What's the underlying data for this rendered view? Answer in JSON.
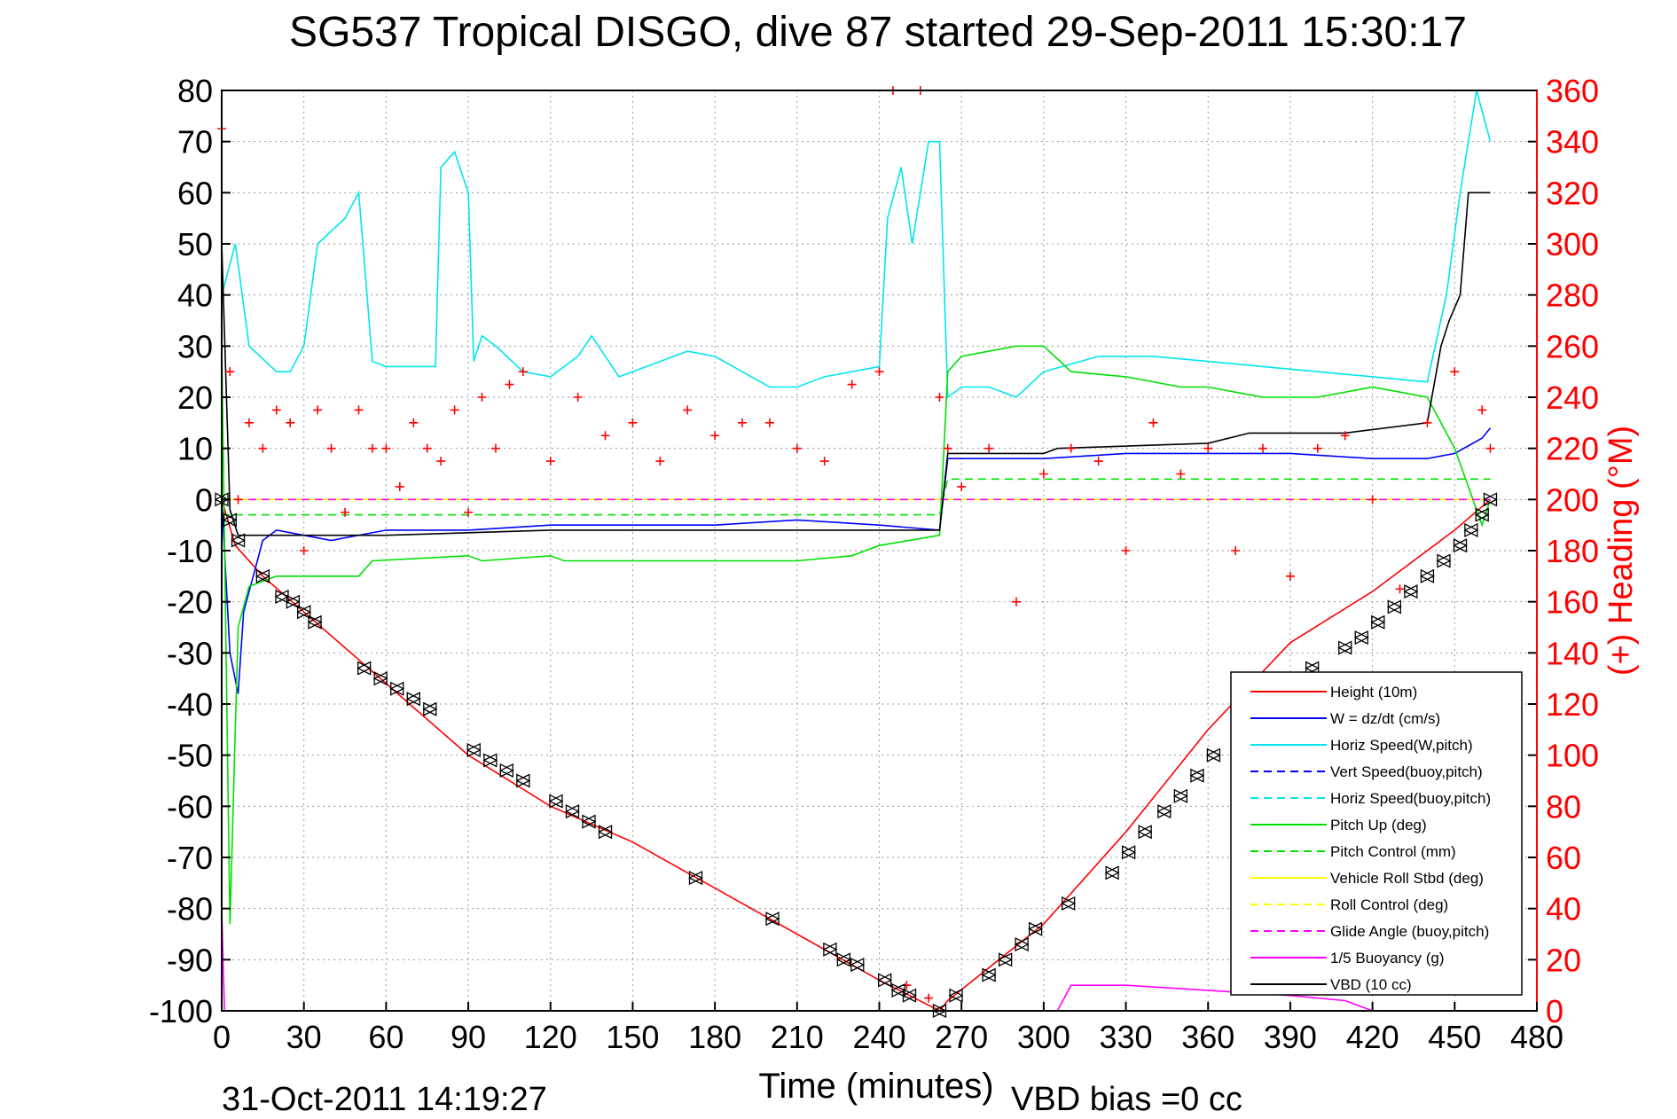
{
  "chart_data": {
    "type": "line",
    "title": "SG537 Tropical DISGO, dive 87 started 29-Sep-2011 15:30:17",
    "xlabel": "Time (minutes)",
    "ylabel": "",
    "ylabel_right": "(+) Heading (°M)",
    "xlim": [
      0,
      480
    ],
    "ylim": [
      -100,
      80
    ],
    "ylim_right": [
      0,
      360
    ],
    "x_ticks": [
      0,
      30,
      60,
      90,
      120,
      150,
      180,
      210,
      240,
      270,
      300,
      330,
      360,
      390,
      420,
      450,
      480
    ],
    "y_ticks": [
      -100,
      -90,
      -80,
      -70,
      -60,
      -50,
      -40,
      -30,
      -20,
      -10,
      0,
      10,
      20,
      30,
      40,
      50,
      60,
      70,
      80
    ],
    "y_ticks_right": [
      0,
      20,
      40,
      60,
      80,
      100,
      120,
      140,
      160,
      180,
      200,
      220,
      240,
      260,
      280,
      300,
      320,
      340,
      360
    ],
    "grid": true,
    "legend_position": "bottom-right",
    "footer_left": "31-Oct-2011 14:19:27",
    "footer_right": "VBD bias =0 cc",
    "series": [
      {
        "name": "Height (10m)",
        "color": "#ff0000",
        "style": "solid",
        "x": [
          0,
          5,
          15,
          30,
          60,
          90,
          120,
          150,
          180,
          210,
          240,
          262,
          265,
          300,
          330,
          360,
          390,
          420,
          450,
          463
        ],
        "y": [
          0,
          -9,
          -15,
          -22,
          -36,
          -50,
          -60,
          -67,
          -76,
          -85,
          -94,
          -100,
          -98,
          -83,
          -65,
          -45,
          -28,
          -18,
          -6,
          0
        ]
      },
      {
        "name": "W = dz/dt (cm/s)",
        "color": "#0000ff",
        "style": "solid",
        "x": [
          0,
          3,
          6,
          8,
          12,
          15,
          20,
          30,
          40,
          60,
          90,
          120,
          150,
          180,
          210,
          240,
          262,
          265,
          270,
          300,
          330,
          360,
          390,
          420,
          440,
          450,
          460,
          463
        ],
        "y": [
          0,
          -30,
          -38,
          -22,
          -14,
          -8,
          -6,
          -7,
          -8,
          -6,
          -6,
          -5,
          -5,
          -5,
          -4,
          -5,
          -6,
          8,
          8,
          8,
          9,
          9,
          9,
          8,
          8,
          9,
          12,
          14
        ]
      },
      {
        "name": "Horiz Speed(W,pitch)",
        "color": "#00e5ee",
        "style": "solid",
        "x": [
          0,
          5,
          10,
          20,
          25,
          30,
          35,
          45,
          50,
          55,
          60,
          70,
          78,
          80,
          85,
          90,
          92,
          95,
          100,
          110,
          120,
          130,
          135,
          145,
          150,
          160,
          170,
          180,
          190,
          200,
          210,
          220,
          230,
          240,
          243,
          248,
          252,
          258,
          262,
          265,
          270,
          280,
          290,
          300,
          320,
          340,
          360,
          380,
          400,
          420,
          440,
          447,
          452,
          458,
          463
        ],
        "y": [
          40,
          50,
          30,
          25,
          25,
          30,
          50,
          55,
          60,
          27,
          26,
          26,
          26,
          65,
          68,
          60,
          27,
          32,
          30,
          25,
          24,
          28,
          32,
          24,
          25,
          27,
          29,
          28,
          25,
          22,
          22,
          24,
          25,
          26,
          55,
          65,
          50,
          70,
          70,
          20,
          22,
          22,
          20,
          25,
          28,
          28,
          27,
          26,
          25,
          24,
          23,
          40,
          60,
          80,
          70
        ]
      },
      {
        "name": "Vert Speed(buoy,pitch)",
        "color": "#0000ff",
        "style": "dashed",
        "x": [],
        "y": []
      },
      {
        "name": "Horiz Speed(buoy,pitch)",
        "color": "#00e5ee",
        "style": "dashed",
        "x": [],
        "y": []
      },
      {
        "name": "Pitch Up (deg)",
        "color": "#00e000",
        "style": "solid",
        "x": [
          0,
          3,
          6,
          10,
          20,
          30,
          50,
          55,
          90,
          95,
          120,
          125,
          210,
          230,
          240,
          262,
          265,
          270,
          290,
          300,
          310,
          330,
          350,
          360,
          380,
          400,
          420,
          440,
          450,
          460,
          463
        ],
        "y": [
          30,
          -83,
          -25,
          -17,
          -15,
          -15,
          -15,
          -12,
          -11,
          -12,
          -11,
          -12,
          -12,
          -11,
          -9,
          -7,
          25,
          28,
          30,
          30,
          25,
          24,
          22,
          22,
          20,
          20,
          22,
          20,
          10,
          -5,
          0
        ]
      },
      {
        "name": "Pitch Control (mm)",
        "color": "#00e000",
        "style": "dashed",
        "x": [
          0,
          262,
          265,
          463
        ],
        "y": [
          -3,
          -3,
          4,
          4
        ]
      },
      {
        "name": "Vehicle Roll Stbd (deg)",
        "color": "#ffff00",
        "style": "solid",
        "x": [
          0,
          262,
          265,
          463
        ],
        "y": [
          0,
          0,
          0,
          0
        ]
      },
      {
        "name": "Roll Control (deg)",
        "color": "#ffff00",
        "style": "dashed",
        "x": [
          0,
          262,
          265,
          463
        ],
        "y": [
          0,
          0,
          0,
          0
        ]
      },
      {
        "name": "Glide Angle (buoy,pitch)",
        "color": "#ff00ff",
        "style": "dashed",
        "x": [
          0,
          463
        ],
        "y": [
          0,
          0
        ]
      },
      {
        "name": "1/5 Buoyancy (g)",
        "color": "#ff00ff",
        "style": "solid",
        "x": [
          0,
          1,
          2,
          305,
          310,
          330,
          360,
          390,
          410,
          420
        ],
        "y": [
          -80,
          -100,
          -100,
          -100,
          -95,
          -95,
          -96,
          -97,
          -98,
          -100
        ]
      },
      {
        "name": "VBD (10 cc)",
        "color": "#000000",
        "style": "solid",
        "x": [
          0,
          3,
          6,
          10,
          20,
          30,
          60,
          120,
          180,
          240,
          262,
          265,
          300,
          305,
          360,
          375,
          410,
          440,
          445,
          448,
          452,
          455,
          463
        ],
        "y": [
          50,
          -2,
          -7,
          -7,
          -7,
          -7,
          -7,
          -6,
          -6,
          -6,
          -6,
          9,
          9,
          10,
          11,
          13,
          13,
          15,
          30,
          35,
          40,
          60,
          60
        ]
      },
      {
        "name": "Heading",
        "color": "#ff0000",
        "marker": "+",
        "axis": "right",
        "x": [
          0,
          3,
          6,
          10,
          15,
          20,
          25,
          30,
          35,
          40,
          45,
          50,
          55,
          60,
          65,
          70,
          75,
          80,
          85,
          90,
          95,
          100,
          105,
          110,
          120,
          130,
          140,
          150,
          160,
          170,
          180,
          190,
          200,
          210,
          220,
          230,
          240,
          245,
          250,
          255,
          258,
          262,
          265,
          270,
          280,
          290,
          300,
          310,
          320,
          330,
          340,
          350,
          360,
          370,
          380,
          390,
          400,
          410,
          420,
          430,
          440,
          450,
          460,
          463
        ],
        "y": [
          345,
          250,
          200,
          230,
          220,
          235,
          230,
          180,
          235,
          220,
          195,
          235,
          220,
          220,
          205,
          230,
          220,
          215,
          235,
          195,
          240,
          220,
          245,
          250,
          215,
          240,
          225,
          230,
          215,
          235,
          225,
          230,
          230,
          220,
          215,
          245,
          250,
          360,
          10,
          360,
          5,
          240,
          220,
          205,
          220,
          160,
          210,
          220,
          215,
          180,
          230,
          210,
          220,
          180,
          220,
          170,
          220,
          225,
          200,
          165,
          230,
          250,
          235,
          220
        ]
      }
    ],
    "markers": {
      "name": "Height markers",
      "color": "#000000",
      "x": [
        0,
        3,
        6,
        15,
        22,
        26,
        30,
        34,
        52,
        58,
        64,
        70,
        76,
        92,
        98,
        104,
        110,
        122,
        128,
        134,
        140,
        173,
        201,
        222,
        227,
        232,
        242,
        247,
        251,
        262,
        268,
        280,
        286,
        292,
        297,
        309,
        325,
        331,
        337,
        344,
        350,
        356,
        362,
        374,
        386,
        398,
        410,
        416,
        422,
        428,
        434,
        440,
        446,
        452,
        456,
        460,
        463
      ],
      "y": [
        0,
        -4,
        -8,
        -15,
        -19,
        -20,
        -22,
        -24,
        -33,
        -35,
        -37,
        -39,
        -41,
        -49,
        -51,
        -53,
        -55,
        -59,
        -61,
        -63,
        -65,
        -74,
        -82,
        -88,
        -90,
        -91,
        -94,
        -96,
        -97,
        -100,
        -97,
        -93,
        -90,
        -87,
        -84,
        -79,
        -73,
        -69,
        -65,
        -61,
        -58,
        -54,
        -50,
        -44,
        -38,
        -33,
        -29,
        -27,
        -24,
        -21,
        -18,
        -15,
        -12,
        -9,
        -6,
        -3,
        0
      ]
    }
  }
}
